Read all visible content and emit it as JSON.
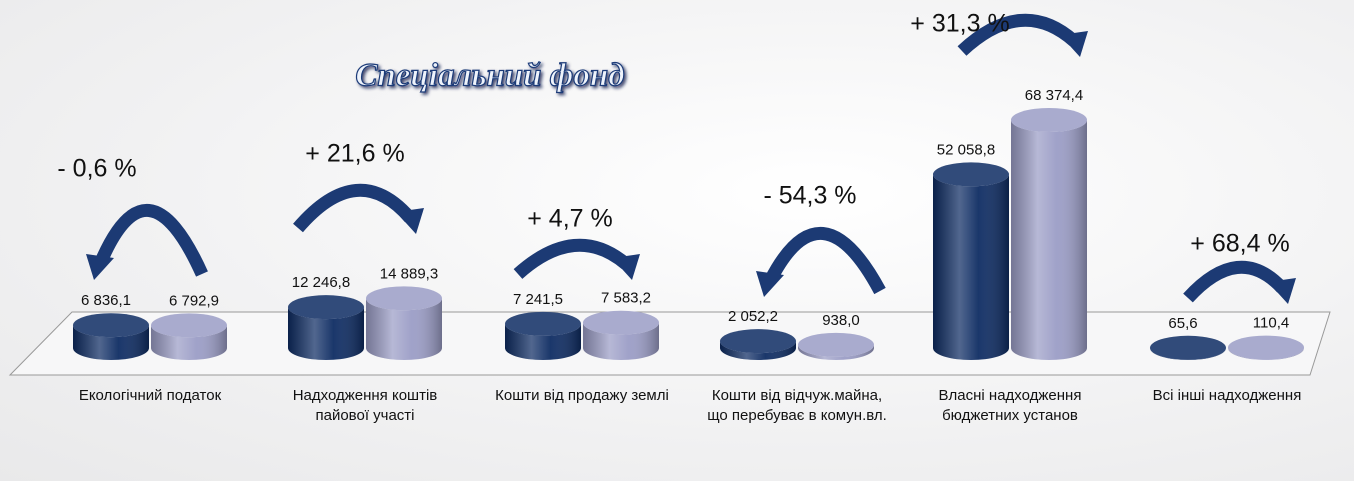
{
  "chart_data": {
    "type": "bar3d",
    "title": "Спеціальний фонд",
    "categories": [
      "Екологічний податок",
      "Надходження коштів пайової участі",
      "Кошти від продажу землі",
      "Кошти від відчуж.майна,  що перебуває в комун.вл.",
      "Власні надходження бюджетних установ",
      "Всі інші надходження"
    ],
    "series": [
      {
        "color": "#0e2c63",
        "values": [
          6836.1,
          12246.8,
          7241.5,
          2052.2,
          52058.8,
          65.6
        ],
        "value_labels": [
          "6 836,1",
          "12 246,8",
          "7 241,5",
          "2 052,2",
          "52 058,8",
          "65,6"
        ]
      },
      {
        "color": "#9b9dc6",
        "values": [
          6792.9,
          14889.3,
          7583.2,
          938.0,
          68374.4,
          110.4
        ],
        "value_labels": [
          "6 792,9",
          "14 889,3",
          "7 583,2",
          "938,0",
          "68 374,4",
          "110,4"
        ]
      }
    ],
    "annotations": [
      "- 0,6 %",
      "+ 21,6 %",
      "+ 4,7 %",
      "- 54,3 %",
      "+ 31,3 %",
      "+ 68,4 %"
    ]
  }
}
